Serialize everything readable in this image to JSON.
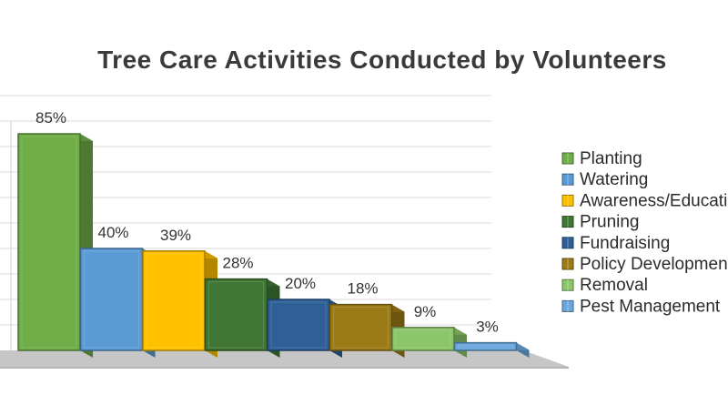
{
  "chart_data": {
    "type": "bar",
    "title": "Tree Care Activities Conducted by Volunteers",
    "categories": [
      "Planting",
      "Watering",
      "Awareness/Education",
      "Pruning",
      "Fundraising",
      "Policy Development",
      "Removal",
      "Pest Management"
    ],
    "values": [
      85,
      40,
      39,
      28,
      20,
      18,
      9,
      3
    ],
    "data_labels": [
      "85%",
      "40%",
      "39%",
      "28%",
      "20%",
      "18%",
      "9%",
      "3%"
    ],
    "unit": "%",
    "ylim": [
      0,
      100
    ],
    "grid": true,
    "three_d": true,
    "legend_position": "right",
    "legend": [
      "Planting",
      "Watering",
      "Awareness/Education",
      "Pruning",
      "Fundraising",
      "Policy Development",
      "Removal",
      "Pest Management"
    ],
    "colors": [
      "#6fad47",
      "#5b9bd5",
      "#ffc000",
      "#3f7634",
      "#2e5f96",
      "#9c7a15",
      "#8cc66a",
      "#6aa7dc"
    ]
  }
}
